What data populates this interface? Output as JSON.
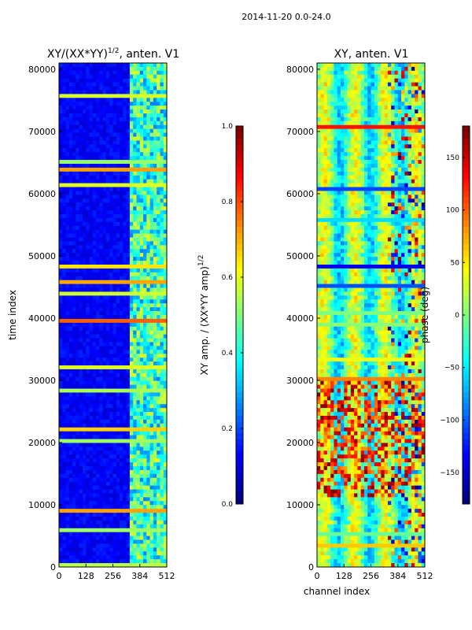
{
  "figure": {
    "suptitle": "2014-11-20 0.0-24.0"
  },
  "colors": {
    "jet": [
      "#00007f",
      "#0000ff",
      "#007fff",
      "#00ffff",
      "#7fff7f",
      "#ffff00",
      "#ff7f00",
      "#ff0000",
      "#7f0000"
    ],
    "axis": "#000000",
    "background": "#ffffff"
  },
  "chart_data": [
    {
      "type": "heatmap",
      "title_prefix": "XY/(XX*YY)",
      "title_sup": "1/2",
      "title_suffix": ", anten. V1",
      "xlabel": "",
      "ylabel": "time index",
      "xlim": [
        0,
        512
      ],
      "ylim": [
        0,
        81000
      ],
      "x_ticks": [
        0,
        128,
        256,
        384,
        512
      ],
      "y_ticks": [
        0,
        10000,
        20000,
        30000,
        40000,
        50000,
        60000,
        70000,
        80000
      ],
      "x_tick_labels": [
        "0",
        "128",
        "256",
        "384",
        "512"
      ],
      "y_tick_labels": [
        "0",
        "10000",
        "20000",
        "30000",
        "40000",
        "50000",
        "60000",
        "70000",
        "80000"
      ],
      "colorbar": {
        "label_prefix": "XY amp. / (XX*YY amp)",
        "label_sup": "1/2",
        "range": [
          0,
          1
        ],
        "ticks": [
          0,
          0.2,
          0.4,
          0.6,
          0.8,
          1
        ],
        "tick_labels": [
          "0.0",
          "0.2",
          "0.4",
          "0.6",
          "0.8",
          "1.0"
        ]
      }
    },
    {
      "type": "heatmap",
      "title": "XY, anten. V1",
      "xlabel": "channel index",
      "ylabel": "",
      "xlim": [
        0,
        512
      ],
      "ylim": [
        0,
        81000
      ],
      "x_ticks": [
        0,
        128,
        256,
        384,
        512
      ],
      "y_ticks": [
        0,
        10000,
        20000,
        30000,
        40000,
        50000,
        60000,
        70000,
        80000
      ],
      "x_tick_labels": [
        "0",
        "128",
        "256",
        "384",
        "512"
      ],
      "y_tick_labels": [
        "0",
        "10000",
        "20000",
        "30000",
        "40000",
        "50000",
        "60000",
        "70000",
        "80000"
      ],
      "colorbar": {
        "label": "phase (deg)",
        "range": [
          -180,
          180
        ],
        "ticks": [
          -150,
          -100,
          -50,
          0,
          50,
          100,
          150
        ],
        "tick_labels": [
          "−150",
          "−100",
          "−50",
          "0",
          "50",
          "100",
          "150"
        ]
      }
    }
  ]
}
